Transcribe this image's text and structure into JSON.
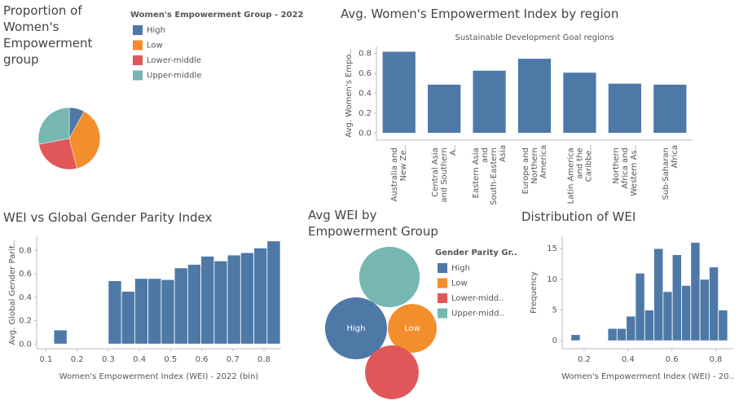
{
  "chart_data": [
    {
      "type": "pie",
      "title": "Proportion of Women's Empowerment group",
      "legend_title": "Women's Empowerment Group - 2022",
      "categories": [
        "High",
        "Low",
        "Lower-middle",
        "Upper-middle"
      ],
      "values": [
        8,
        38,
        26,
        28
      ],
      "colors": [
        "#4e79a7",
        "#f28e2b",
        "#e15759",
        "#76b7b2"
      ],
      "legend": "right"
    },
    {
      "type": "bar",
      "title": "Avg. Women's Empowerment Index by region",
      "subtitle": "Sustainable Development Goal regions",
      "y_label": "Avg. Women's Empo..",
      "categories": [
        "Australia and New Ze..",
        "Central Asia and Southern A..",
        "Eastern Asia and South-Eastern Asia",
        "Europe and Northern America",
        "Latin America and the Caribbe..",
        "Northern Africa and Western As..",
        "Sub-Saharan Africa"
      ],
      "values": [
        0.82,
        0.49,
        0.63,
        0.75,
        0.61,
        0.5,
        0.49
      ],
      "color": "#4e79a7",
      "ylim": [
        -0.07,
        0.87
      ],
      "yticks": [
        {
          "value": 0,
          "label": "0.0"
        },
        0.2,
        0.4,
        0.6,
        0.8
      ]
    },
    {
      "type": "bar",
      "title": "WEI vs Global Gender Parity Index",
      "x_label": "Women's Empowerment Index (WEI) - 2022 (bin)",
      "y_label": "Avg. Global Gender Parit..",
      "color": "#4e79a7",
      "bin_width": 0.0425,
      "x": [
        0.125,
        0.3,
        0.3425,
        0.385,
        0.4275,
        0.47,
        0.5125,
        0.555,
        0.5975,
        0.64,
        0.6825,
        0.725,
        0.7675,
        0.81
      ],
      "values": [
        0.12,
        0.54,
        0.45,
        0.56,
        0.56,
        0.55,
        0.65,
        0.68,
        0.75,
        0.71,
        0.76,
        0.78,
        0.82,
        0.88
      ],
      "xlim": [
        0.07,
        0.855
      ],
      "xticks": [
        0.1,
        0.2,
        0.3,
        0.4,
        0.5,
        0.6,
        0.7,
        0.8
      ],
      "ylim": [
        -0.04,
        0.92
      ],
      "yticks": [
        {
          "value": 0,
          "label": "0.0"
        },
        0.2,
        0.4,
        0.6,
        0.8
      ]
    },
    {
      "type": "bubble",
      "title": "Avg WEI by Empowerment Group",
      "legend_title": "Gender Parity Gr..",
      "categories": [
        "High",
        "Low",
        "Lower-midd..",
        "Upper-midd.."
      ],
      "labels": [
        "High",
        "Low",
        null,
        null
      ],
      "values": [
        0.84,
        0.52,
        0.63,
        0.8
      ],
      "colors": [
        "#4e79a7",
        "#f28e2b",
        "#e15759",
        "#76b7b2"
      ],
      "legend": "right"
    },
    {
      "type": "histogram",
      "title": "Distribution of WEI",
      "x_label": "Women's Empowerment Index (WEI) - 20..",
      "y_label": "Frequency",
      "color": "#4e79a7",
      "bins": [
        0.14,
        0.182,
        0.224,
        0.266,
        0.308,
        0.35,
        0.392,
        0.434,
        0.476,
        0.518,
        0.56,
        0.602,
        0.644,
        0.686,
        0.728,
        0.77,
        0.812,
        0.854
      ],
      "values": [
        1,
        0,
        0,
        0,
        2,
        2,
        4,
        11,
        5,
        15,
        8,
        14,
        9,
        16,
        10,
        12,
        5
      ],
      "xlim": [
        0.1,
        0.88
      ],
      "xticks": [
        0.2,
        0.4,
        0.6,
        0.8
      ],
      "ylim": [
        -1.3,
        17
      ],
      "yticks": [
        0,
        5,
        10,
        15
      ]
    }
  ]
}
